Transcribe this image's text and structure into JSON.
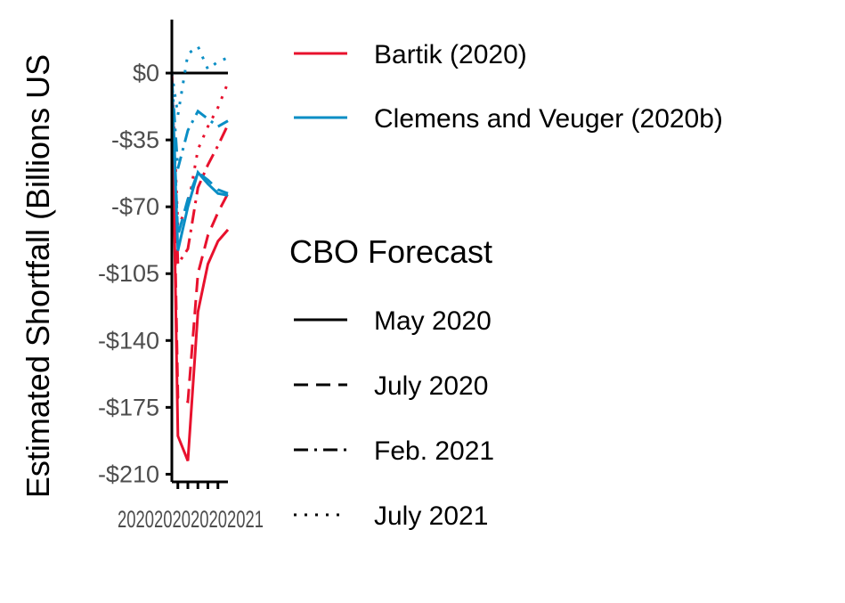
{
  "chart_data": {
    "type": "line",
    "ylabel": "Estimated Shortfall (Billions US",
    "ylim": [
      -214,
      28
    ],
    "xlim": [
      2020.1,
      2021.5
    ],
    "y_ticks": [
      {
        "value": 0,
        "label": "$0"
      },
      {
        "value": -35,
        "label": "-$35"
      },
      {
        "value": -70,
        "label": "-$70"
      },
      {
        "value": -105,
        "label": "-$105"
      },
      {
        "value": -140,
        "label": "-$140"
      },
      {
        "value": -175,
        "label": "-$175"
      },
      {
        "value": -210,
        "label": "-$210"
      }
    ],
    "x_ticks": [
      2020.25,
      2020.5,
      2020.75,
      2021.0,
      2021.25
    ],
    "x_tick_labels_overlapping": "2020202020202021",
    "colors": {
      "Bartik (2020)": "#e8112d",
      "Clemens and Veuger (2020b)": "#0a8ec5"
    },
    "legend": {
      "placement": "right",
      "source_entries": [
        "Bartik (2020)",
        "Clemens and Veuger (2020b)"
      ],
      "forecast_title": "CBO Forecast",
      "forecast_entries": [
        {
          "label": "May 2020",
          "dash": "solid"
        },
        {
          "label": "July 2020",
          "dash": "dashed"
        },
        {
          "label": "Feb. 2021",
          "dash": "dashdot"
        },
        {
          "label": "July 2021",
          "dash": "dotted"
        }
      ]
    },
    "series": [
      {
        "source": "Bartik (2020)",
        "forecast": "May 2020",
        "x": [
          2020.1,
          2020.25,
          2020.5,
          2020.75,
          2021.0,
          2021.25,
          2021.5
        ],
        "y": [
          0,
          -190,
          -203,
          -125,
          -100,
          -88,
          -82
        ]
      },
      {
        "source": "Bartik (2020)",
        "forecast": "July 2020",
        "x": [
          2020.1,
          2020.25,
          2020.5,
          2020.75,
          2021.0,
          2021.25,
          2021.5
        ],
        "y": [
          0,
          -170,
          -172,
          -105,
          -85,
          -73,
          -63
        ]
      },
      {
        "source": "Bartik (2020)",
        "forecast": "Feb. 2021",
        "x": [
          2020.1,
          2020.25,
          2020.5,
          2020.75,
          2021.0,
          2021.25,
          2021.5
        ],
        "y": [
          0,
          -100,
          -92,
          -60,
          -48,
          -38,
          -27
        ]
      },
      {
        "source": "Bartik (2020)",
        "forecast": "July 2021",
        "x": [
          2020.1,
          2020.25,
          2020.5,
          2020.75,
          2021.0,
          2021.25,
          2021.5
        ],
        "y": [
          0,
          -80,
          -70,
          -40,
          -28,
          -18,
          -5
        ]
      },
      {
        "source": "Clemens and Veuger (2020b)",
        "forecast": "May 2020",
        "x": [
          2020.1,
          2020.25,
          2020.5,
          2020.75,
          2021.0,
          2021.25,
          2021.5
        ],
        "y": [
          -5,
          -93,
          -70,
          -52,
          -58,
          -63,
          -64
        ]
      },
      {
        "source": "Clemens and Veuger (2020b)",
        "forecast": "July 2020",
        "x": [
          2020.1,
          2020.25,
          2020.5,
          2020.75,
          2021.0,
          2021.25,
          2021.5
        ],
        "y": [
          -5,
          -85,
          -66,
          -52,
          -56,
          -61,
          -63
        ]
      },
      {
        "source": "Clemens and Veuger (2020b)",
        "forecast": "Feb. 2021",
        "x": [
          2020.1,
          2020.25,
          2020.5,
          2020.75,
          2021.0,
          2021.25,
          2021.5
        ],
        "y": [
          -3,
          -50,
          -30,
          -20,
          -24,
          -28,
          -25
        ]
      },
      {
        "source": "Clemens and Veuger (2020b)",
        "forecast": "July 2021",
        "x": [
          2020.1,
          2020.25,
          2020.5,
          2020.75,
          2021.0,
          2021.25,
          2021.5
        ],
        "y": [
          0,
          -22,
          10,
          14,
          2,
          6,
          8
        ]
      }
    ]
  }
}
